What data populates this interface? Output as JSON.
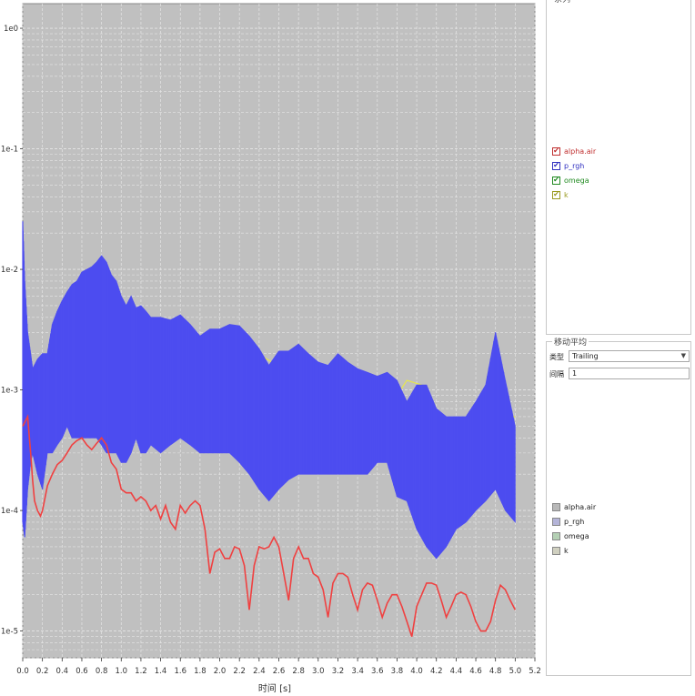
{
  "chart_data": {
    "type": "line",
    "title": "",
    "xlabel": "时间 [s]",
    "ylabel": "",
    "y_scale": "log",
    "xlim": [
      0.0,
      5.2
    ],
    "ylim": [
      6e-06,
      1.6
    ],
    "x_ticks": [
      "0.0",
      "0.2",
      "0.4",
      "0.6",
      "0.8",
      "1.0",
      "1.2",
      "1.4",
      "1.6",
      "1.8",
      "2.0",
      "2.2",
      "2.4",
      "2.6",
      "2.8",
      "3.0",
      "3.2",
      "3.4",
      "3.6",
      "3.8",
      "4.0",
      "4.2",
      "4.4",
      "4.6",
      "4.8",
      "5.0",
      "5.2"
    ],
    "y_ticks": [
      "1e0",
      "1e-1",
      "1e-2",
      "1e-3",
      "1e-4",
      "1e-5"
    ],
    "grid": true,
    "background": "#c0c0c0",
    "series": [
      {
        "name": "k",
        "color": "#e8e84a",
        "x": [
          2.2,
          2.25,
          2.3,
          3.1,
          3.2,
          3.4,
          3.5,
          3.8,
          3.9,
          4.05,
          4.4,
          4.5,
          4.9,
          5.0
        ],
        "y": [
          0.0015,
          0.002,
          0.0022,
          0.0009,
          0.0012,
          0.0012,
          0.0012,
          0.0009,
          0.0012,
          0.0011,
          0.0003,
          0.0003,
          0.0006,
          0.0006
        ]
      },
      {
        "name": "omega",
        "color": "#3ec83e",
        "x": [
          1.2,
          1.9,
          2.0,
          4.6,
          4.75
        ],
        "y": [
          0.0009,
          0.00055,
          0.0006,
          0.0004,
          0.00045
        ]
      },
      {
        "name": "p_rgh",
        "color": "#4d4df0",
        "style": "band",
        "x": [
          0.0,
          0.02,
          0.05,
          0.08,
          0.1,
          0.15,
          0.2,
          0.25,
          0.3,
          0.35,
          0.4,
          0.45,
          0.5,
          0.55,
          0.6,
          0.65,
          0.7,
          0.75,
          0.8,
          0.85,
          0.9,
          0.95,
          1.0,
          1.05,
          1.1,
          1.15,
          1.2,
          1.25,
          1.3,
          1.4,
          1.5,
          1.6,
          1.7,
          1.8,
          1.9,
          2.0,
          2.1,
          2.2,
          2.3,
          2.4,
          2.5,
          2.6,
          2.7,
          2.8,
          2.9,
          3.0,
          3.1,
          3.2,
          3.3,
          3.4,
          3.5,
          3.6,
          3.7,
          3.8,
          3.9,
          4.0,
          4.1,
          4.2,
          4.3,
          4.4,
          4.5,
          4.6,
          4.7,
          4.8,
          4.9,
          5.0
        ],
        "upper": [
          0.025,
          0.008,
          0.003,
          0.002,
          0.0015,
          0.0018,
          0.002,
          0.002,
          0.0035,
          0.0045,
          0.0055,
          0.0065,
          0.0075,
          0.008,
          0.0095,
          0.01,
          0.0105,
          0.0115,
          0.013,
          0.0115,
          0.009,
          0.008,
          0.006,
          0.005,
          0.006,
          0.0048,
          0.005,
          0.0045,
          0.004,
          0.004,
          0.0038,
          0.0042,
          0.0035,
          0.0028,
          0.0032,
          0.0032,
          0.0035,
          0.0034,
          0.0028,
          0.0022,
          0.0016,
          0.0021,
          0.0021,
          0.0024,
          0.002,
          0.0017,
          0.0016,
          0.002,
          0.0017,
          0.0015,
          0.0014,
          0.0013,
          0.0014,
          0.0012,
          0.0008,
          0.0011,
          0.0011,
          0.0007,
          0.0006,
          0.0006,
          0.0006,
          0.0008,
          0.0011,
          0.003,
          0.0012,
          0.0005
        ],
        "lower": [
          8e-05,
          6e-05,
          0.00015,
          0.00025,
          0.0003,
          0.0002,
          0.00015,
          0.0003,
          0.0003,
          0.00035,
          0.0004,
          0.0005,
          0.0004,
          0.0004,
          0.0004,
          0.0004,
          0.0004,
          0.0004,
          0.00035,
          0.0003,
          0.0003,
          0.0003,
          0.00025,
          0.00025,
          0.0003,
          0.0004,
          0.0003,
          0.0003,
          0.00035,
          0.0003,
          0.00035,
          0.0004,
          0.00035,
          0.0003,
          0.0003,
          0.0003,
          0.0003,
          0.00025,
          0.0002,
          0.00015,
          0.00012,
          0.00015,
          0.00018,
          0.0002,
          0.0002,
          0.0002,
          0.0002,
          0.0002,
          0.0002,
          0.0002,
          0.0002,
          0.00025,
          0.00025,
          0.00013,
          0.00012,
          7e-05,
          5e-05,
          4e-05,
          5e-05,
          7e-05,
          8e-05,
          0.0001,
          0.00012,
          0.00015,
          0.0001,
          8e-05
        ]
      },
      {
        "name": "alpha.air",
        "color": "#f04040",
        "x": [
          0.0,
          0.05,
          0.08,
          0.1,
          0.12,
          0.15,
          0.18,
          0.2,
          0.25,
          0.3,
          0.35,
          0.4,
          0.45,
          0.5,
          0.55,
          0.6,
          0.65,
          0.7,
          0.75,
          0.8,
          0.85,
          0.9,
          0.95,
          1.0,
          1.05,
          1.1,
          1.15,
          1.2,
          1.25,
          1.3,
          1.35,
          1.4,
          1.45,
          1.5,
          1.55,
          1.6,
          1.65,
          1.7,
          1.75,
          1.8,
          1.85,
          1.9,
          1.95,
          2.0,
          2.05,
          2.1,
          2.15,
          2.2,
          2.25,
          2.3,
          2.35,
          2.4,
          2.45,
          2.5,
          2.55,
          2.6,
          2.65,
          2.7,
          2.75,
          2.8,
          2.85,
          2.9,
          2.95,
          3.0,
          3.05,
          3.1,
          3.15,
          3.2,
          3.25,
          3.3,
          3.35,
          3.4,
          3.45,
          3.5,
          3.55,
          3.6,
          3.65,
          3.7,
          3.75,
          3.8,
          3.85,
          3.9,
          3.95,
          4.0,
          4.05,
          4.1,
          4.15,
          4.2,
          4.25,
          4.3,
          4.35,
          4.4,
          4.45,
          4.5,
          4.55,
          4.6,
          4.65,
          4.7,
          4.75,
          4.8,
          4.85,
          4.9,
          4.95,
          5.0
        ],
        "y": [
          0.0005,
          0.0006,
          0.0003,
          0.00018,
          0.00012,
          0.0001,
          9e-05,
          0.0001,
          0.00016,
          0.0002,
          0.00024,
          0.00026,
          0.0003,
          0.00035,
          0.00038,
          0.0004,
          0.00035,
          0.00032,
          0.00036,
          0.0004,
          0.00035,
          0.00025,
          0.00022,
          0.00015,
          0.00014,
          0.00014,
          0.00012,
          0.00013,
          0.00012,
          0.0001,
          0.00011,
          8.5e-05,
          0.00011,
          8e-05,
          7e-05,
          0.00011,
          9.5e-05,
          0.00011,
          0.00012,
          0.00011,
          7e-05,
          3e-05,
          4.5e-05,
          4.8e-05,
          4e-05,
          4e-05,
          5e-05,
          4.8e-05,
          3.5e-05,
          1.5e-05,
          3.5e-05,
          5e-05,
          4.8e-05,
          5e-05,
          6e-05,
          5e-05,
          3e-05,
          1.8e-05,
          4e-05,
          5e-05,
          4e-05,
          4e-05,
          3e-05,
          2.8e-05,
          2.2e-05,
          1.3e-05,
          2.5e-05,
          3e-05,
          3e-05,
          2.8e-05,
          2e-05,
          1.5e-05,
          2.2e-05,
          2.5e-05,
          2.4e-05,
          1.8e-05,
          1.3e-05,
          1.7e-05,
          2e-05,
          2e-05,
          1.6e-05,
          1.2e-05,
          9e-06,
          1.6e-05,
          2e-05,
          2.5e-05,
          2.5e-05,
          2.4e-05,
          1.8e-05,
          1.3e-05,
          1.6e-05,
          2e-05,
          2.1e-05,
          2e-05,
          1.6e-05,
          1.2e-05,
          1e-05,
          1e-05,
          1.2e-05,
          1.8e-05,
          2.4e-05,
          2.2e-05,
          1.8e-05,
          1.5e-05
        ]
      }
    ]
  },
  "series_panel": {
    "title": "系列",
    "items": [
      {
        "label": "alpha.air",
        "color": "#c03030",
        "checked": true
      },
      {
        "label": "p_rgh",
        "color": "#3030c0",
        "checked": true
      },
      {
        "label": "omega",
        "color": "#208a20",
        "checked": true
      },
      {
        "label": "k",
        "color": "#9a9a20",
        "checked": true
      }
    ]
  },
  "moving_average": {
    "title": "移动平均",
    "type_label": "类型",
    "type_value": "Trailing",
    "interval_label": "间隔",
    "interval_value": "1",
    "legend": [
      {
        "label": "alpha.air",
        "swatch": "#b8b8b8"
      },
      {
        "label": "p_rgh",
        "swatch": "#b4b4d8"
      },
      {
        "label": "omega",
        "swatch": "#b4d0b4"
      },
      {
        "label": "k",
        "swatch": "#d0d0c0"
      }
    ]
  }
}
